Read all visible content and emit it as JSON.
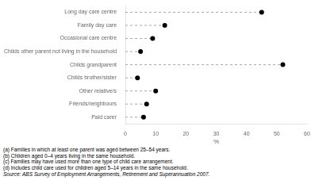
{
  "chart_data": {
    "type": "dot",
    "categories": [
      "Long day care centre",
      "Family day care",
      "Occasional care centre",
      "Childs other parent not living in the household",
      "Childs grandparent",
      "Childs brother/sister",
      "Other relative/s",
      "Friends/neighbours",
      "Paid carer"
    ],
    "values": [
      45,
      13,
      9,
      5,
      52,
      4,
      10,
      7,
      6
    ],
    "xlim": [
      0,
      60
    ],
    "xticks": [
      0,
      10,
      20,
      30,
      40,
      50,
      60
    ],
    "xlabel": "%",
    "color": "#000000",
    "marker": "o",
    "line_style": "dashed",
    "grid": false,
    "annotations": [
      "(a) Families in which at least one parent was aged between 25–54 years.",
      "(b) Children aged 0–4 years living in the same household.",
      "(c) Families may have used more than one type of child care arrangement.",
      "(d) Includes child care used for children aged 5–14 years in the same household."
    ],
    "source": "Source: ABS Survey of Employment Arrangements, Retirement and Superannuation 2007."
  }
}
